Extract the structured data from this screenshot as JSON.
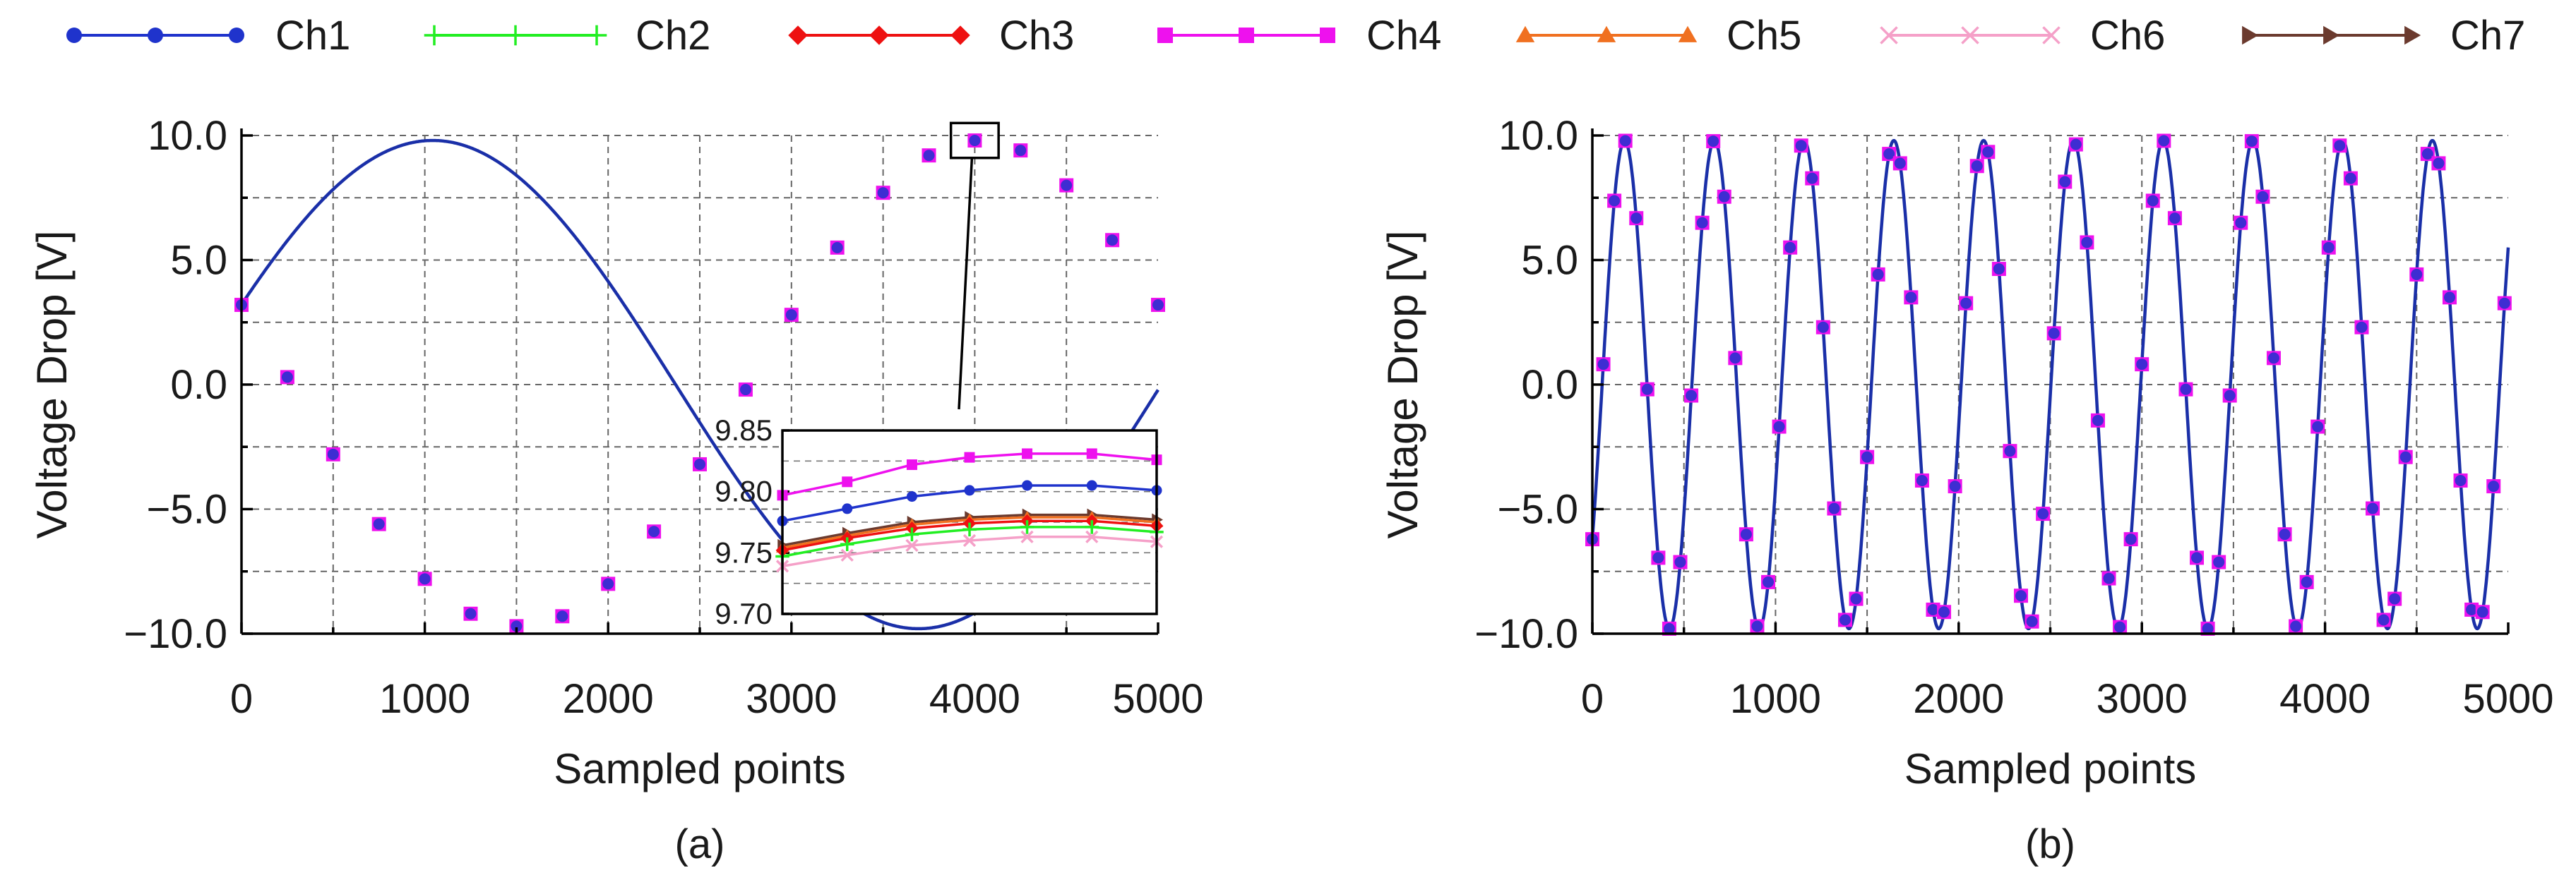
{
  "chart_data": {
    "legend": {
      "placement": "top",
      "entries": [
        {
          "name": "Ch1",
          "color": "#1f33cc",
          "marker": "circle"
        },
        {
          "name": "Ch2",
          "color": "#22ee22",
          "marker": "plus"
        },
        {
          "name": "Ch3",
          "color": "#ee1111",
          "marker": "diamond"
        },
        {
          "name": "Ch4",
          "color": "#ee11ee",
          "marker": "square"
        },
        {
          "name": "Ch5",
          "color": "#f07020",
          "marker": "triangle"
        },
        {
          "name": "Ch6",
          "color": "#f5a0c8",
          "marker": "x"
        },
        {
          "name": "Ch7",
          "color": "#6b3a2e",
          "marker": "triangle-right"
        }
      ]
    },
    "panels": [
      {
        "id": "a",
        "type": "line",
        "caption": "(a)",
        "xlabel": "Sampled points",
        "ylabel": "Voltage Drop [V]",
        "xlim": [
          0,
          5000
        ],
        "ylim": [
          -10,
          10
        ],
        "xticks": [
          0,
          1000,
          2000,
          3000,
          4000,
          5000
        ],
        "xtick_labels": [
          "0",
          "1000",
          "2000",
          "3000",
          "4000",
          "5000"
        ],
        "yticks": [
          -10,
          -5,
          0,
          5,
          10
        ],
        "ytick_labels": [
          "−10.0",
          "−5.0",
          "0.0",
          "5.0",
          "10.0"
        ],
        "grid": true,
        "signal": {
          "amplitude": 9.8,
          "period_samples": 5300,
          "phase_rad": 0.334
        },
        "marker_x": [
          0,
          250,
          500,
          750,
          1000,
          1250,
          1500,
          1750,
          2000,
          2250,
          2500,
          2750,
          3000,
          3250,
          3500,
          3750,
          4000,
          4250,
          4500,
          4750,
          5000
        ],
        "marker_y": [
          3.2,
          0.3,
          -2.8,
          -5.6,
          -7.8,
          -9.2,
          -9.7,
          -9.3,
          -8.0,
          -5.9,
          -3.2,
          -0.2,
          2.8,
          5.5,
          7.7,
          9.2,
          9.8,
          9.4,
          8.0,
          5.8,
          3.2
        ],
        "zoom_box": {
          "x": [
            3870,
            4130
          ],
          "y": [
            9.1,
            10.5
          ]
        },
        "inset": {
          "xlim": [
            3870,
            4130
          ],
          "ylim": [
            9.7,
            9.85
          ],
          "yticks": [
            9.7,
            9.75,
            9.8,
            9.85
          ],
          "ytick_labels": [
            "9.70",
            "9.75",
            "9.80",
            "9.85"
          ],
          "series": [
            {
              "name": "Ch4",
              "x": [
                3870,
                3915,
                3960,
                4000,
                4040,
                4085,
                4130
              ],
              "y": [
                9.797,
                9.808,
                9.822,
                9.828,
                9.831,
                9.831,
                9.826
              ]
            },
            {
              "name": "Ch1",
              "x": [
                3870,
                3915,
                3960,
                4000,
                4040,
                4085,
                4130
              ],
              "y": [
                9.776,
                9.786,
                9.796,
                9.801,
                9.805,
                9.805,
                9.801
              ]
            },
            {
              "name": "Ch7",
              "x": [
                3870,
                3915,
                3960,
                4000,
                4040,
                4085,
                4130
              ],
              "y": [
                9.756,
                9.766,
                9.775,
                9.779,
                9.781,
                9.781,
                9.777
              ]
            },
            {
              "name": "Ch5",
              "x": [
                3870,
                3915,
                3960,
                4000,
                4040,
                4085,
                4130
              ],
              "y": [
                9.754,
                9.764,
                9.773,
                9.777,
                9.779,
                9.779,
                9.775
              ]
            },
            {
              "name": "Ch3",
              "x": [
                3870,
                3915,
                3960,
                4000,
                4040,
                4085,
                4130
              ],
              "y": [
                9.752,
                9.762,
                9.77,
                9.774,
                9.776,
                9.776,
                9.772
              ]
            },
            {
              "name": "Ch2",
              "x": [
                3870,
                3915,
                3960,
                4000,
                4040,
                4085,
                4130
              ],
              "y": [
                9.747,
                9.757,
                9.765,
                9.769,
                9.771,
                9.771,
                9.767
              ]
            },
            {
              "name": "Ch6",
              "x": [
                3870,
                3915,
                3960,
                4000,
                4040,
                4085,
                4130
              ],
              "y": [
                9.739,
                9.748,
                9.756,
                9.76,
                9.763,
                9.763,
                9.759
              ]
            }
          ]
        }
      },
      {
        "id": "b",
        "type": "line",
        "caption": "(b)",
        "xlabel": "Sampled points",
        "ylabel": "Voltage Drop [V]",
        "xlim": [
          0,
          5000
        ],
        "ylim": [
          -10,
          10
        ],
        "xticks": [
          0,
          1000,
          2000,
          3000,
          4000,
          5000
        ],
        "xtick_labels": [
          "0",
          "1000",
          "2000",
          "3000",
          "4000",
          "5000"
        ],
        "yticks": [
          -10,
          -5,
          0,
          5,
          10
        ],
        "ytick_labels": [
          "−10.0",
          "−5.0",
          "0.0",
          "5.0",
          "10.0"
        ],
        "grid": true,
        "signal": {
          "amplitude": 9.8,
          "period_samples": 490,
          "phase_rad": -0.686
        },
        "marker_step": 60,
        "series_note": "all seven channels overlap"
      }
    ]
  }
}
